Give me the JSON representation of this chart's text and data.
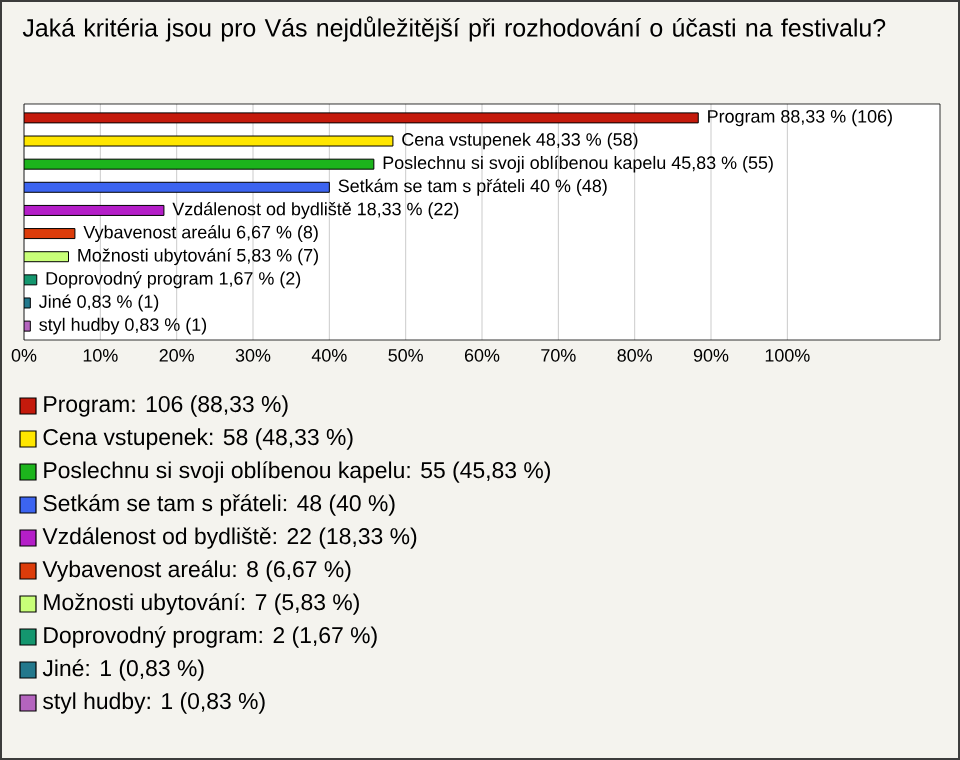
{
  "chart_data": {
    "type": "bar",
    "orientation": "horizontal",
    "title": "Jaká kritéria jsou pro Vás nejdůležitější při rozhodování o účasti na festivalu?",
    "categories": [
      null,
      null,
      null,
      null,
      null,
      null,
      null,
      null,
      null,
      null
    ],
    "xlim": [
      0,
      120
    ],
    "xticks": [
      {
        "value": 0,
        "label": "0%"
      },
      {
        "value": 10,
        "label": "10%"
      },
      {
        "value": 20,
        "label": "20%"
      },
      {
        "value": 30,
        "label": "30%"
      },
      {
        "value": 40,
        "label": "40%"
      },
      {
        "value": 50,
        "label": "50%"
      },
      {
        "value": 60,
        "label": "60%"
      },
      {
        "value": 70,
        "label": "70%"
      },
      {
        "value": 80,
        "label": "80%"
      },
      {
        "value": 90,
        "label": "90%"
      },
      {
        "value": 100,
        "label": "100%"
      }
    ],
    "grid": "x",
    "legend": "bottom",
    "series": [
      {
        "name": "Program: 106 (88,33 %)",
        "color": "#c41a0c",
        "values": [
          88.33,
          null,
          null,
          null,
          null,
          null,
          null,
          null,
          null,
          null
        ],
        "value_labels": [
          "Program 88,33 % (106)",
          null,
          null,
          null,
          null,
          null,
          null,
          null,
          null,
          null
        ]
      },
      {
        "name": "Cena vstupenek: 58 (48,33 %)",
        "color": "#ffe600",
        "values": [
          null,
          48.33,
          null,
          null,
          null,
          null,
          null,
          null,
          null,
          null
        ],
        "value_labels": [
          null,
          "Cena vstupenek 48,33 % (58)",
          null,
          null,
          null,
          null,
          null,
          null,
          null,
          null
        ]
      },
      {
        "name": "Poslechnu si svoji oblíbenou kapelu: 55 (45,83 %)",
        "color": "#1cb41c",
        "values": [
          null,
          null,
          45.83,
          null,
          null,
          null,
          null,
          null,
          null,
          null
        ],
        "value_labels": [
          null,
          null,
          "Poslechnu si svoji oblíbenou kapelu 45,83 % (55)",
          null,
          null,
          null,
          null,
          null,
          null,
          null
        ]
      },
      {
        "name": "Setkám se tam s přáteli: 48 (40 %)",
        "color": "#3c64f0",
        "values": [
          null,
          null,
          null,
          40,
          null,
          null,
          null,
          null,
          null,
          null
        ],
        "value_labels": [
          null,
          null,
          null,
          "Setkám se tam s přáteli 40 % (48)",
          null,
          null,
          null,
          null,
          null,
          null
        ]
      },
      {
        "name": "Vzdálenost od bydliště: 22 (18,33 %)",
        "color": "#b41ec8",
        "values": [
          null,
          null,
          null,
          null,
          18.33,
          null,
          null,
          null,
          null,
          null
        ],
        "value_labels": [
          null,
          null,
          null,
          null,
          "Vzdálenost od bydliště 18,33 % (22)",
          null,
          null,
          null,
          null,
          null
        ]
      },
      {
        "name": "Vybavenost areálu: 8 (6,67 %)",
        "color": "#dc3c0a",
        "values": [
          null,
          null,
          null,
          null,
          null,
          6.67,
          null,
          null,
          null,
          null
        ],
        "value_labels": [
          null,
          null,
          null,
          null,
          null,
          "Vybavenost areálu 6,67 % (8)",
          null,
          null,
          null,
          null
        ]
      },
      {
        "name": "Možnosti ubytování: 7 (5,83 %)",
        "color": "#c8ff78",
        "values": [
          null,
          null,
          null,
          null,
          null,
          null,
          5.83,
          null,
          null,
          null
        ],
        "value_labels": [
          null,
          null,
          null,
          null,
          null,
          null,
          "Možnosti ubytování 5,83 % (7)",
          null,
          null,
          null
        ]
      },
      {
        "name": "Doprovodný program: 2 (1,67 %)",
        "color": "#14966e",
        "values": [
          null,
          null,
          null,
          null,
          null,
          null,
          null,
          1.67,
          null,
          null
        ],
        "value_labels": [
          null,
          null,
          null,
          null,
          null,
          null,
          null,
          "Doprovodný program 1,67 % (2)",
          null,
          null
        ]
      },
      {
        "name": "Jiné: 1 (0,83 %)",
        "color": "#23788c",
        "values": [
          null,
          null,
          null,
          null,
          null,
          null,
          null,
          null,
          0.83,
          null
        ],
        "value_labels": [
          null,
          null,
          null,
          null,
          null,
          null,
          null,
          null,
          "Jiné 0,83 % (1)",
          null
        ]
      },
      {
        "name": "styl hudby: 1 (0,83 %)",
        "color": "#b464be",
        "values": [
          null,
          null,
          null,
          null,
          null,
          null,
          null,
          null,
          null,
          0.83
        ],
        "value_labels": [
          null,
          null,
          null,
          null,
          null,
          null,
          null,
          null,
          null,
          "styl hudby 0,83 % (1)"
        ]
      }
    ]
  }
}
